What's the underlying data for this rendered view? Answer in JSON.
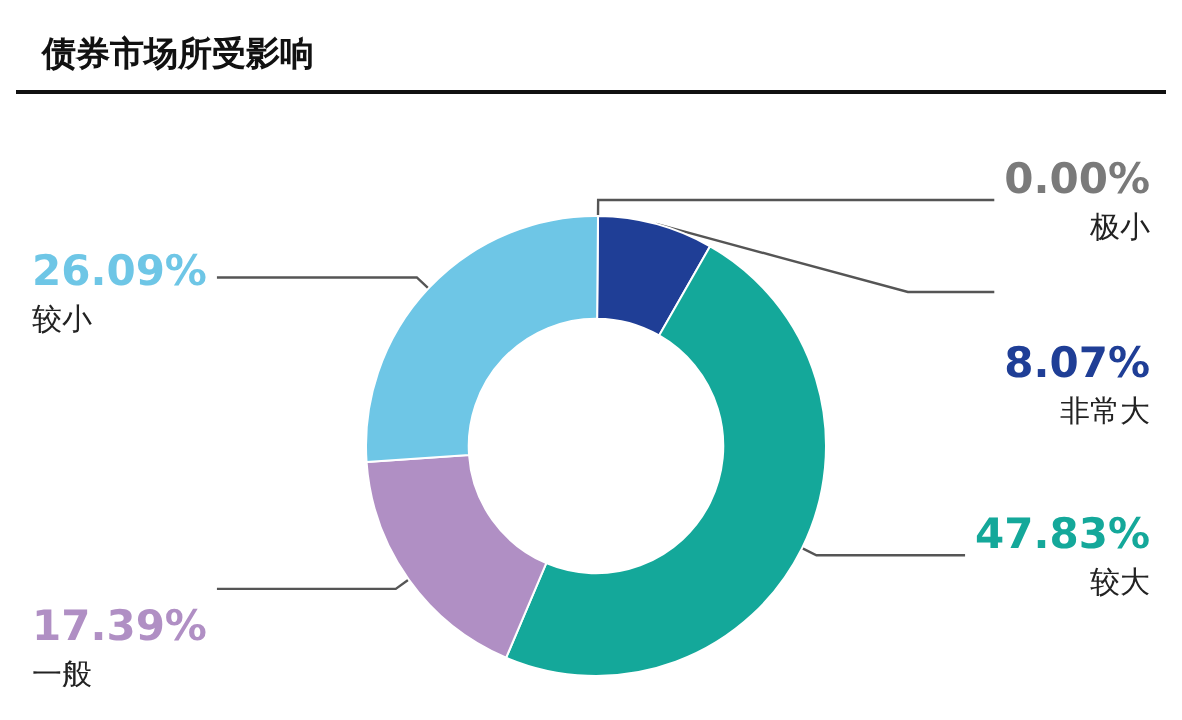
{
  "chart_data": {
    "type": "donut",
    "title": "债券市场所受影响",
    "categories": [
      "极小",
      "非常大",
      "较大",
      "一般",
      "较小"
    ],
    "values": [
      0,
      8.07,
      47.83,
      17.39,
      26.09
    ],
    "value_labels": [
      "0.00%",
      "8.07%",
      "47.83%",
      "17.39%",
      "26.09%"
    ],
    "colors": [
      "#7a7a7a",
      "#1f3e96",
      "#14a89a",
      "#b08fc4",
      "#6ec6e6"
    ],
    "legend": false
  }
}
